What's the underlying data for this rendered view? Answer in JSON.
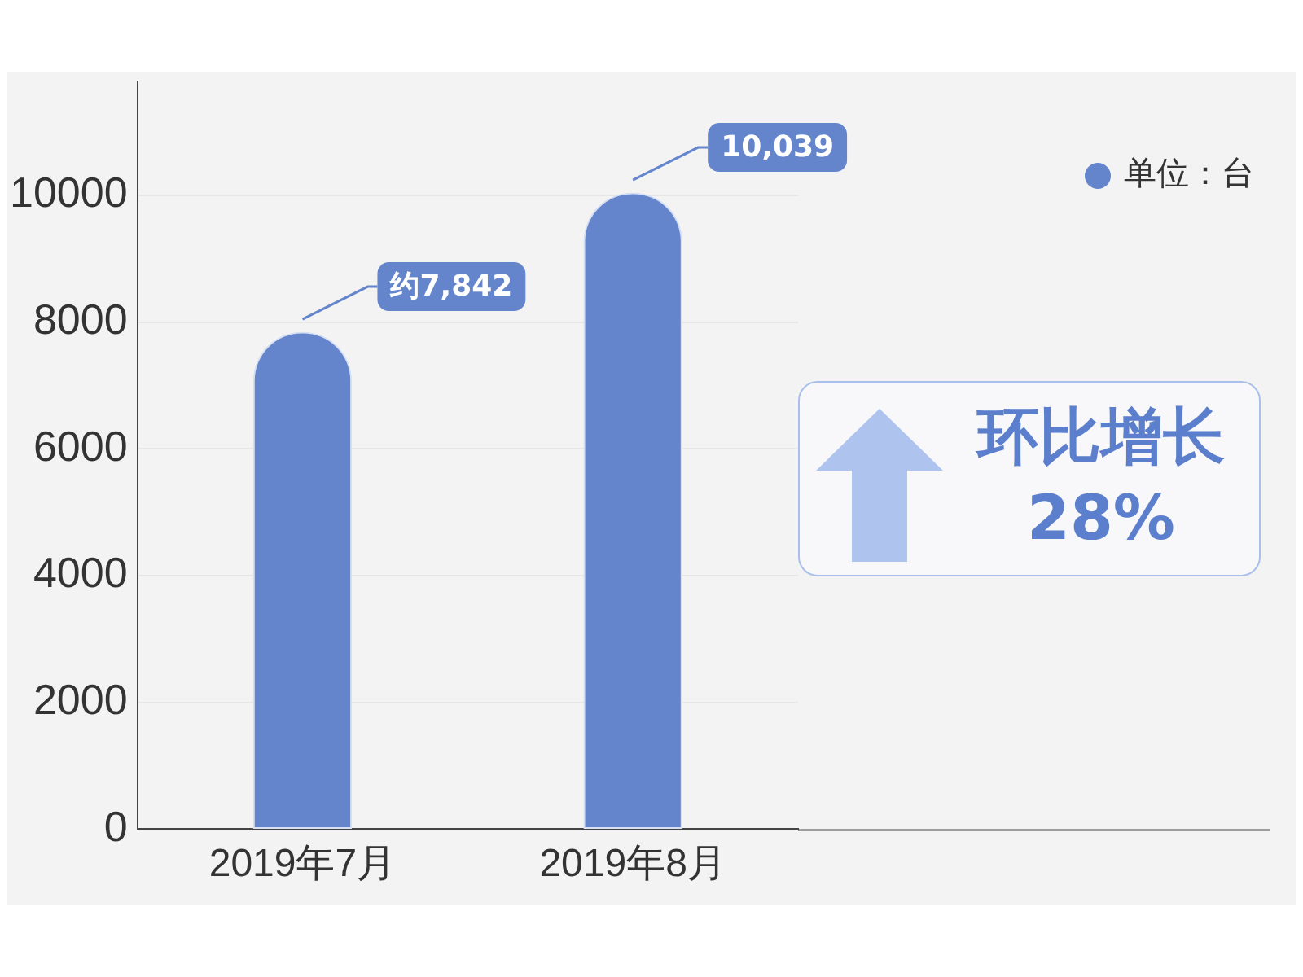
{
  "chart_data": {
    "type": "bar",
    "categories": [
      "2019年7月",
      "2019年8月"
    ],
    "series": [
      {
        "name": "单位：台",
        "color": "#6485cc",
        "values": [
          7842,
          10039
        ],
        "value_labels": [
          "约7,842",
          "10,039"
        ]
      }
    ],
    "ylim": [
      0,
      11800
    ],
    "yticks": [
      0,
      2000,
      4000,
      6000,
      8000,
      10000
    ],
    "grid": "y",
    "legend": "top right",
    "annotations": [
      "环比增长\n28%"
    ]
  }
}
